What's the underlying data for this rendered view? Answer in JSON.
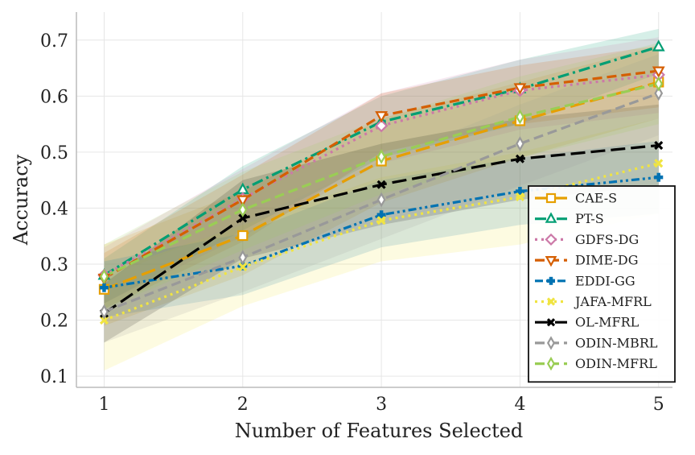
{
  "chart_data": {
    "type": "line",
    "title": "",
    "xlabel": "Number of Features Selected",
    "ylabel": "Accuracy",
    "x": [
      1,
      2,
      3,
      4,
      5
    ],
    "xlim": [
      0.8,
      5.1
    ],
    "ylim": [
      0.08,
      0.75
    ],
    "yticks": [
      0.1,
      0.2,
      0.3,
      0.4,
      0.5,
      0.6,
      0.7
    ],
    "xticks": [
      1,
      2,
      3,
      4,
      5
    ],
    "grid": true,
    "legend_position": "bottom-right",
    "series": [
      {
        "name": "CAE-S",
        "color": "#E69F00",
        "dash": "long-dash",
        "marker": "square",
        "values": [
          0.255,
          0.351,
          0.484,
          0.556,
          0.625
        ],
        "lower": [
          0.19,
          0.28,
          0.41,
          0.49,
          0.56
        ],
        "upper": [
          0.335,
          0.43,
          0.56,
          0.625,
          0.69
        ]
      },
      {
        "name": "PT-S",
        "color": "#009E73",
        "dash": "dash-dot",
        "marker": "triangle-up",
        "values": [
          0.28,
          0.433,
          0.554,
          0.613,
          0.688
        ],
        "lower": [
          0.23,
          0.36,
          0.49,
          0.55,
          0.64
        ],
        "upper": [
          0.31,
          0.475,
          0.6,
          0.665,
          0.72
        ]
      },
      {
        "name": "GDFS-DG",
        "color": "#CC79A7",
        "dash": "dotted",
        "marker": "diamond",
        "values": [
          0.28,
          0.417,
          0.547,
          0.61,
          0.638
        ],
        "lower": [
          0.23,
          0.35,
          0.48,
          0.54,
          0.57
        ],
        "upper": [
          0.33,
          0.47,
          0.605,
          0.665,
          0.705
        ]
      },
      {
        "name": "DIME-DG",
        "color": "#D55E00",
        "dash": "dashed",
        "marker": "triangle-down",
        "values": [
          0.275,
          0.415,
          0.565,
          0.615,
          0.645
        ],
        "lower": [
          0.22,
          0.34,
          0.5,
          0.55,
          0.58
        ],
        "upper": [
          0.32,
          0.46,
          0.605,
          0.655,
          0.69
        ]
      },
      {
        "name": "EDDI-GG",
        "color": "#0072B2",
        "dash": "dash-dot-dot",
        "marker": "plus",
        "values": [
          0.258,
          0.297,
          0.388,
          0.43,
          0.455
        ],
        "lower": [
          0.205,
          0.245,
          0.33,
          0.37,
          0.39
        ],
        "upper": [
          0.305,
          0.355,
          0.45,
          0.49,
          0.52
        ]
      },
      {
        "name": "JAFA-MFRL",
        "color": "#F0E442",
        "dash": "dotted",
        "marker": "x",
        "values": [
          0.2,
          0.295,
          0.378,
          0.42,
          0.48
        ],
        "lower": [
          0.11,
          0.225,
          0.305,
          0.335,
          0.39
        ],
        "upper": [
          0.285,
          0.37,
          0.455,
          0.5,
          0.56
        ]
      },
      {
        "name": "OL-MFRL",
        "color": "#000000",
        "dash": "long-dash",
        "marker": "x",
        "values": [
          0.212,
          0.382,
          0.442,
          0.488,
          0.512
        ],
        "lower": [
          0.16,
          0.31,
          0.37,
          0.415,
          0.44
        ],
        "upper": [
          0.265,
          0.45,
          0.515,
          0.56,
          0.585
        ]
      },
      {
        "name": "ODIN-MBRL",
        "color": "#999999",
        "dash": "dashed",
        "marker": "thin-diamond",
        "values": [
          0.215,
          0.312,
          0.415,
          0.515,
          0.605
        ],
        "lower": [
          0.16,
          0.25,
          0.345,
          0.44,
          0.53
        ],
        "upper": [
          0.275,
          0.375,
          0.485,
          0.585,
          0.675
        ]
      },
      {
        "name": "ODIN-MFRL",
        "color": "#9ACD55",
        "dash": "dashed",
        "marker": "thin-diamond",
        "values": [
          0.278,
          0.397,
          0.492,
          0.563,
          0.622
        ],
        "lower": [
          0.22,
          0.325,
          0.425,
          0.49,
          0.55
        ],
        "upper": [
          0.335,
          0.465,
          0.56,
          0.635,
          0.695
        ]
      }
    ]
  }
}
